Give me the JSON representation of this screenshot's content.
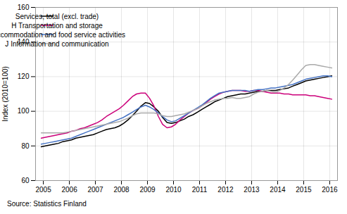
{
  "chart_data": {
    "type": "line",
    "ylabel": "Index (2010=100)",
    "source": "Source: Statistics Finland",
    "xlim": [
      2004.7,
      2016.3
    ],
    "xticks": [
      2005,
      2006,
      2007,
      2008,
      2009,
      2010,
      2011,
      2012,
      2013,
      2014,
      2015,
      2016
    ],
    "ylim": [
      60,
      160
    ],
    "yticks": [
      60,
      80,
      100,
      120,
      140,
      160
    ],
    "grid": true,
    "legend": "upper left",
    "x": [
      2004.92,
      2005.08,
      2005.25,
      2005.42,
      2005.58,
      2005.75,
      2005.92,
      2006.08,
      2006.25,
      2006.42,
      2006.58,
      2006.75,
      2006.92,
      2007.08,
      2007.25,
      2007.42,
      2007.58,
      2007.75,
      2007.92,
      2008.08,
      2008.25,
      2008.42,
      2008.58,
      2008.75,
      2008.92,
      2009.08,
      2009.25,
      2009.42,
      2009.58,
      2009.75,
      2009.92,
      2010.08,
      2010.25,
      2010.42,
      2010.58,
      2010.75,
      2010.92,
      2011.08,
      2011.25,
      2011.42,
      2011.58,
      2011.75,
      2011.92,
      2012.08,
      2012.25,
      2012.42,
      2012.58,
      2012.75,
      2012.92,
      2013.08,
      2013.25,
      2013.42,
      2013.58,
      2013.75,
      2013.92,
      2014.08,
      2014.25,
      2014.42,
      2014.58,
      2014.75,
      2014.92,
      2015.08,
      2015.25,
      2015.42,
      2015.58,
      2015.75,
      2015.92,
      2016.08
    ],
    "series": [
      {
        "name": "Services, total (excl. trade)",
        "color": "#000000",
        "values": [
          79.5,
          80.0,
          80.5,
          81.0,
          81.5,
          82.5,
          83.0,
          83.5,
          84.5,
          85.0,
          85.5,
          86.0,
          86.5,
          87.5,
          88.5,
          89.5,
          90.0,
          90.5,
          91.5,
          93.0,
          95.0,
          97.5,
          100.0,
          103.0,
          105.0,
          104.5,
          102.5,
          100.0,
          96.5,
          93.5,
          93.0,
          93.5,
          94.5,
          95.5,
          97.0,
          98.0,
          99.5,
          101.0,
          102.5,
          104.0,
          105.5,
          106.5,
          107.5,
          108.5,
          109.0,
          109.5,
          110.0,
          110.0,
          110.5,
          111.0,
          111.5,
          111.5,
          112.0,
          112.0,
          112.0,
          112.5,
          113.0,
          113.5,
          114.5,
          115.5,
          116.5,
          117.5,
          118.0,
          118.5,
          119.0,
          119.5,
          120.0,
          120.5
        ]
      },
      {
        "name": "H Transportation and storage",
        "color": "#cc007a",
        "values": [
          84.5,
          85.0,
          85.5,
          86.0,
          86.5,
          87.0,
          87.5,
          88.5,
          89.0,
          90.0,
          90.5,
          91.5,
          92.5,
          93.5,
          95.0,
          97.0,
          98.5,
          100.0,
          101.5,
          103.5,
          106.0,
          108.5,
          110.0,
          110.5,
          110.5,
          107.5,
          103.0,
          97.0,
          92.5,
          90.5,
          91.0,
          92.5,
          95.0,
          97.0,
          99.0,
          100.5,
          101.5,
          103.0,
          105.0,
          107.0,
          108.5,
          110.0,
          111.0,
          111.5,
          112.0,
          112.0,
          112.0,
          111.5,
          111.5,
          112.0,
          112.0,
          111.5,
          111.0,
          110.5,
          110.5,
          110.5,
          110.0,
          110.0,
          109.5,
          109.5,
          109.5,
          109.5,
          109.0,
          109.0,
          108.5,
          108.0,
          107.5,
          107.0
        ]
      },
      {
        "name": "I Accommodation and food service activities",
        "color": "#4472c4",
        "values": [
          81.0,
          81.5,
          82.0,
          82.5,
          83.0,
          83.5,
          84.0,
          84.5,
          85.5,
          86.5,
          87.5,
          88.5,
          89.5,
          90.5,
          91.5,
          92.5,
          93.5,
          94.5,
          95.5,
          96.5,
          98.0,
          99.5,
          101.0,
          102.5,
          103.5,
          102.5,
          101.0,
          99.0,
          97.0,
          95.0,
          94.0,
          94.5,
          96.0,
          97.5,
          99.0,
          100.5,
          102.0,
          103.5,
          105.5,
          107.5,
          109.0,
          110.5,
          111.0,
          111.5,
          112.0,
          112.0,
          112.0,
          112.0,
          111.5,
          112.0,
          112.5,
          112.5,
          113.0,
          113.5,
          113.5,
          114.0,
          114.5,
          115.0,
          115.5,
          116.5,
          117.5,
          118.5,
          119.0,
          119.5,
          120.0,
          120.5,
          120.5,
          120.0
        ]
      },
      {
        "name": "J Information and communication",
        "color": "#aaaaaa",
        "values": [
          87.5,
          87.5,
          87.5,
          87.5,
          87.5,
          87.5,
          88.0,
          88.5,
          89.0,
          89.5,
          90.0,
          90.5,
          91.0,
          91.5,
          92.0,
          92.5,
          93.0,
          93.5,
          94.0,
          95.0,
          96.0,
          97.5,
          98.5,
          99.0,
          99.0,
          99.0,
          99.0,
          98.5,
          97.5,
          97.0,
          97.0,
          97.5,
          98.0,
          98.5,
          99.5,
          100.5,
          101.5,
          103.0,
          104.5,
          105.5,
          106.5,
          107.0,
          107.5,
          107.5,
          108.0,
          107.5,
          107.5,
          108.0,
          108.5,
          110.0,
          111.0,
          111.5,
          112.0,
          111.5,
          111.0,
          112.0,
          113.5,
          115.5,
          118.0,
          121.0,
          124.0,
          126.5,
          127.0,
          127.0,
          126.5,
          126.0,
          125.5,
          125.0
        ]
      }
    ]
  }
}
